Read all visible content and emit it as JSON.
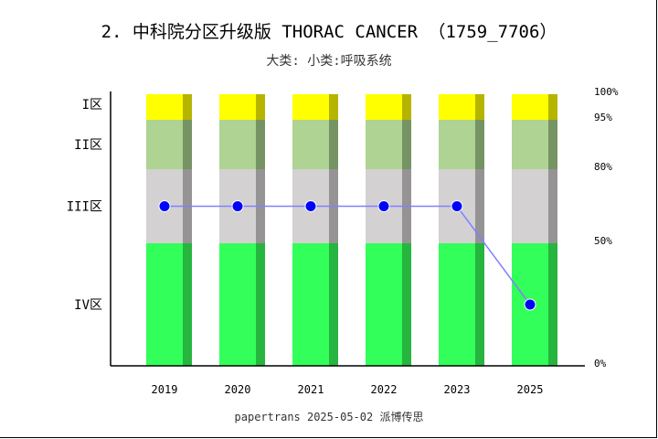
{
  "chart_data": {
    "type": "bar",
    "title": "2. 中科院分区升级版 THORAC CANCER （1759_7706）",
    "subtitle": "大类:  小类:呼吸系统",
    "footer": "papertrans 2025-05-02 派博传思",
    "categories": [
      "2019",
      "2020",
      "2021",
      "2022",
      "2023",
      "2025"
    ],
    "zones": [
      {
        "label": "I区",
        "from": 95,
        "to": 100,
        "color": "#ffff00",
        "shade": "#b5b500"
      },
      {
        "label": "II区",
        "from": 80,
        "to": 95,
        "color": "#aed392",
        "shade": "#769463"
      },
      {
        "label": "III区",
        "from": 50,
        "to": 80,
        "color": "#d3d1d2",
        "shade": "#959394"
      },
      {
        "label": "IV区",
        "from": 0,
        "to": 50,
        "color": "#33ff5a",
        "shade": "#26b53f"
      }
    ],
    "right_ticks": [
      "100%",
      "95%",
      "80%",
      "50%",
      "0%"
    ],
    "series": [
      {
        "values": [
          65,
          65,
          65,
          65,
          65,
          25
        ],
        "color": "#0000ff",
        "line_color": "#8080ff"
      }
    ],
    "ylim": [
      0,
      100
    ],
    "grid": false
  }
}
